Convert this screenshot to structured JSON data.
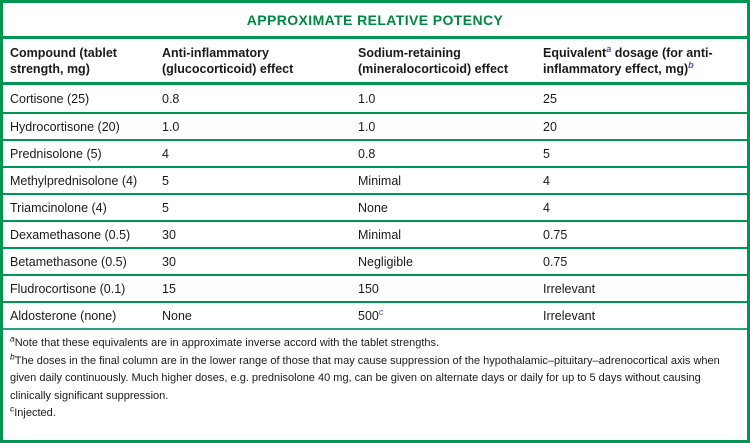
{
  "title": "APPROXIMATE RELATIVE POTENCY",
  "colors": {
    "table_green": "#009551",
    "title_green": "#008741",
    "superscript_blue": "#4355b5"
  },
  "header": {
    "col1": {
      "line1": "Compound (tablet",
      "line2": "strength, mg)"
    },
    "col2": {
      "line1": "Anti-inflammatory",
      "line2": "(glucocorticoid) effect"
    },
    "col3": {
      "line1": "Sodium-retaining",
      "line2": "(mineralocorticoid) effect"
    },
    "col4": {
      "line1_pre": "Equivalent",
      "line1_sup": "a",
      "line1_post": " dosage (for anti-",
      "line2": "inflammatory effect, mg)",
      "line2_sup": "b"
    }
  },
  "rows": [
    {
      "compound": "Cortisone (25)",
      "anti": "0.8",
      "sodium": "1.0",
      "sodium_sup": "",
      "equiv": "25"
    },
    {
      "compound": "Hydrocortisone (20)",
      "anti": "1.0",
      "sodium": "1.0",
      "sodium_sup": "",
      "equiv": "20"
    },
    {
      "compound": "Prednisolone (5)",
      "anti": "4",
      "sodium": "0.8",
      "sodium_sup": "",
      "equiv": "5"
    },
    {
      "compound": "Methylprednisolone (4)",
      "anti": "5",
      "sodium": "Minimal",
      "sodium_sup": "",
      "equiv": "4"
    },
    {
      "compound": "Triamcinolone (4)",
      "anti": "5",
      "sodium": "None",
      "sodium_sup": "",
      "equiv": "4"
    },
    {
      "compound": "Dexamethasone (0.5)",
      "anti": "30",
      "sodium": "Minimal",
      "sodium_sup": "",
      "equiv": "0.75"
    },
    {
      "compound": "Betamethasone (0.5)",
      "anti": "30",
      "sodium": "Negligible",
      "sodium_sup": "",
      "equiv": "0.75"
    },
    {
      "compound": "Fludrocortisone (0.1)",
      "anti": "15",
      "sodium": "150",
      "sodium_sup": "",
      "equiv": "Irrelevant"
    },
    {
      "compound": "Aldosterone (none)",
      "anti": "None",
      "sodium": "500",
      "sodium_sup": "c",
      "equiv": "Irrelevant"
    }
  ],
  "footnotes": [
    {
      "sup": "a",
      "text": "Note that these equivalents are in approximate inverse accord with the tablet strengths."
    },
    {
      "sup": "b",
      "text": "The doses in the final column are in the lower range of those that may cause suppression of the hypothalamic–pituitary–adrenocortical axis when given daily continuously. Much higher doses, e.g. prednisolone 40 mg, can be given on alternate days or daily for up to 5 days without causing clinically significant suppression."
    },
    {
      "sup": "c",
      "text": "Injected."
    }
  ]
}
